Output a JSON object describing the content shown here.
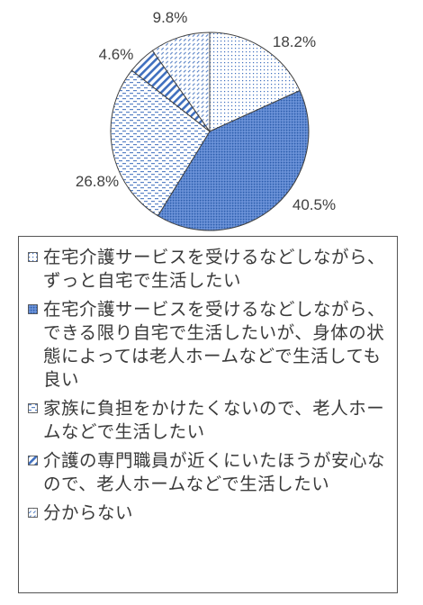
{
  "chart_data": {
    "type": "pie",
    "start": "12 o'clock, clockwise",
    "labels": [
      "在宅介護サービスを受けるなどしながら、ずっと自宅で生活したい",
      "在宅介護サービスを受けるなどしながら、できる限り自宅で生活したいが、身体の状態によっては老人ホームなどで生活しても良い",
      "家族に負担をかけたくないので、老人ホームなどで生活したい",
      "介護の専門職員が近くにいたほうが安心なので、老人ホームなどで生活したい",
      "分からない"
    ],
    "values": [
      18.2,
      40.5,
      26.8,
      4.6,
      9.8
    ],
    "value_labels": [
      "18.2%",
      "40.5%",
      "26.8%",
      "4.6%",
      "9.8%"
    ],
    "colors": [
      "#3f6fbf",
      "#4f7fcc",
      "#5a83c6",
      "#3f6fbf",
      "#5a83c6"
    ],
    "patterns": [
      "dots",
      "dense-dots",
      "dashes",
      "diagonal-stripes",
      "diagonal-dashes"
    ],
    "legend_position": "bottom"
  }
}
